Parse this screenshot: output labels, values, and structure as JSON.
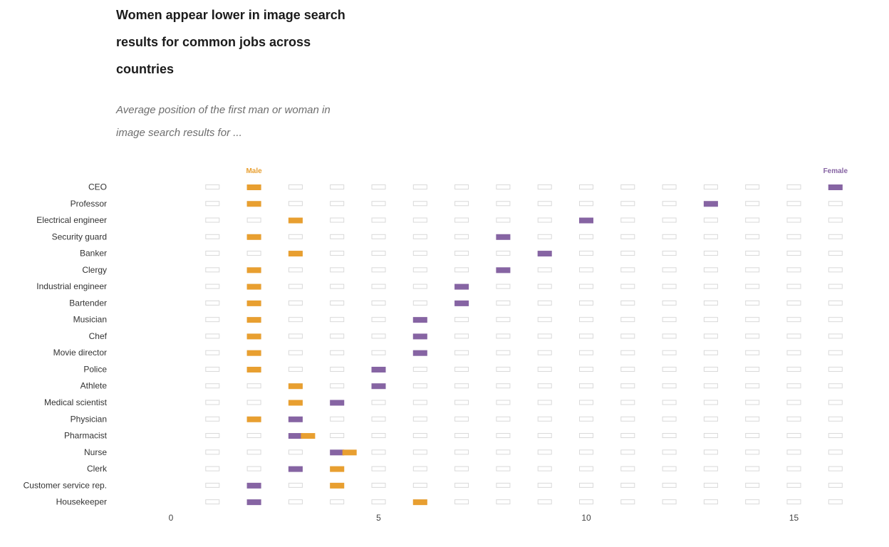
{
  "title": "Women appear lower in image search results for common jobs across countries",
  "subtitle": "Average position of the first man or woman in image search results for ...",
  "colors": {
    "male": "#E89F30",
    "female": "#8664A3",
    "empty_stroke": "#d9d9d9"
  },
  "chart_data": {
    "type": "dot-strip",
    "legend": [
      {
        "name": "Male",
        "color": "#E89F30"
      },
      {
        "name": "Female",
        "color": "#8664A3"
      }
    ],
    "x_ticks": [
      0,
      5,
      10,
      15
    ],
    "xlim": [
      0,
      16
    ],
    "rows": [
      {
        "label": "CEO",
        "male": 2,
        "female": 16
      },
      {
        "label": "Professor",
        "male": 2,
        "female": 13
      },
      {
        "label": "Electrical engineer",
        "male": 3,
        "female": 10
      },
      {
        "label": "Security guard",
        "male": 2,
        "female": 8
      },
      {
        "label": "Banker",
        "male": 3,
        "female": 9
      },
      {
        "label": "Clergy",
        "male": 2,
        "female": 8
      },
      {
        "label": "Industrial engineer",
        "male": 2,
        "female": 7
      },
      {
        "label": "Bartender",
        "male": 2,
        "female": 7
      },
      {
        "label": "Musician",
        "male": 2,
        "female": 6
      },
      {
        "label": "Chef",
        "male": 2,
        "female": 6
      },
      {
        "label": "Movie director",
        "male": 2,
        "female": 6
      },
      {
        "label": "Police",
        "male": 2,
        "female": 5
      },
      {
        "label": "Athlete",
        "male": 3,
        "female": 5
      },
      {
        "label": "Medical scientist",
        "male": 3,
        "female": 4
      },
      {
        "label": "Physician",
        "male": 2,
        "female": 3
      },
      {
        "label": "Pharmacist",
        "male": 3.3,
        "female": 3
      },
      {
        "label": "Nurse",
        "male": 4.3,
        "female": 4
      },
      {
        "label": "Clerk",
        "male": 4,
        "female": 3
      },
      {
        "label": "Customer service rep.",
        "male": 4,
        "female": 2
      },
      {
        "label": "Housekeeper",
        "male": 6,
        "female": 2
      }
    ]
  }
}
